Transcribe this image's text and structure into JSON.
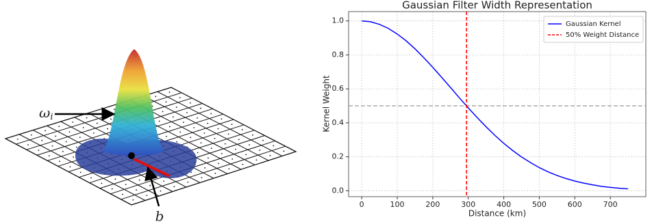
{
  "illustration": {
    "weight_label": "ω",
    "weight_subscript": "i",
    "offset_label": "b"
  },
  "chart_data": {
    "type": "line",
    "title": "Gaussian Filter Width Representation",
    "x_label": "Distance (km)",
    "y_label": "Kernel Weight",
    "x": [
      0,
      25,
      50,
      75,
      100,
      125,
      150,
      175,
      200,
      225,
      250,
      275,
      300,
      325,
      350,
      375,
      400,
      425,
      450,
      475,
      500,
      525,
      550,
      575,
      600,
      625,
      650,
      675,
      700,
      725,
      750
    ],
    "series": [
      {
        "name": "Gaussian Kernel",
        "color": "#0000ff",
        "values": [
          1,
          0.995,
          0.98,
          0.956,
          0.923,
          0.883,
          0.836,
          0.783,
          0.727,
          0.668,
          0.608,
          0.547,
          0.488,
          0.431,
          0.377,
          0.326,
          0.279,
          0.237,
          0.199,
          0.166,
          0.136,
          0.111,
          0.09,
          0.072,
          0.057,
          0.045,
          0.035,
          0.026,
          0.02,
          0.015,
          0.011
        ]
      }
    ],
    "vlines": [
      {
        "name": "50% Weight Distance",
        "x": 295,
        "color": "#ff0000"
      }
    ],
    "hlines": [
      {
        "y": 0.5,
        "color": "#999999"
      }
    ],
    "xlim": [
      -37,
      800
    ],
    "ylim": [
      -0.035,
      1.055
    ],
    "xticks": [
      0,
      100,
      200,
      300,
      400,
      500,
      600,
      700
    ],
    "yticks": [
      {
        "value": 0,
        "label": "0.0"
      },
      0.2,
      0.4,
      0.6,
      0.8,
      {
        "value": 1,
        "label": "1.0"
      }
    ],
    "grid": true,
    "legend": "upper right"
  }
}
